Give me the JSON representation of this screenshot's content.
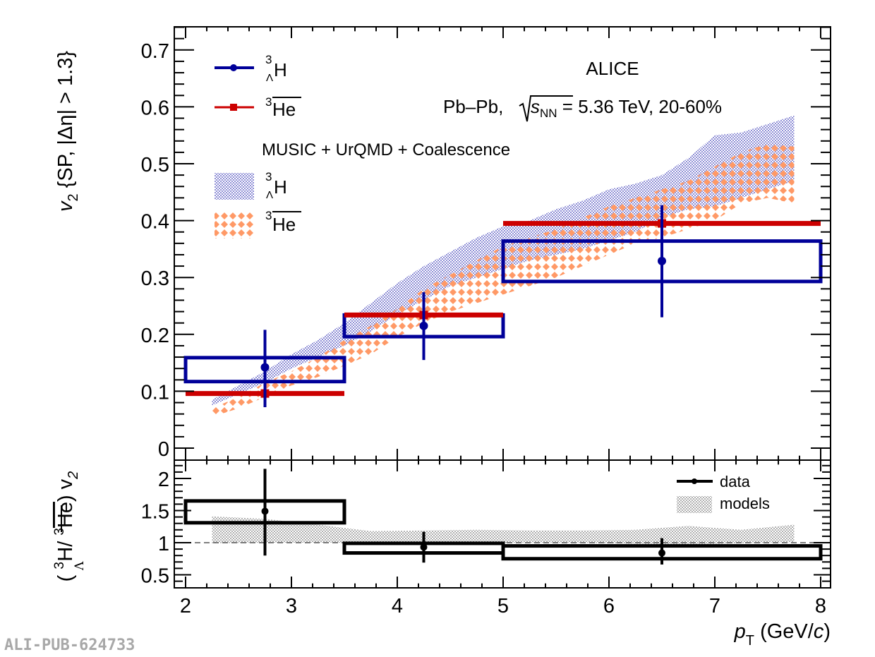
{
  "chart_data": [
    {
      "type": "scatter",
      "panel": "top",
      "ylabel": "v2 {SP, |Δη| > 1.3}",
      "ylabel_parts": {
        "main": "v",
        "sub": "2",
        "rest": " {SP, |Δη| > 1.3}"
      },
      "xlim": [
        1.9,
        8.1
      ],
      "ylim": [
        -0.03,
        0.74
      ],
      "yticks": [
        0,
        0.1,
        0.2,
        0.3,
        0.4,
        0.5,
        0.6,
        0.7
      ],
      "ytick_labels": [
        "0",
        "0.1",
        "0.2",
        "0.3",
        "0.4",
        "0.5",
        "0.6",
        "0.7"
      ],
      "annotations": {
        "experiment": "ALICE",
        "system": "Pb–Pb, ",
        "sqrt_s": "s",
        "sqrt_s_sub": "NN",
        "energy": " = 5.36 TeV, 20-60%",
        "model_title": "MUSIC + UrQMD + Coalescence"
      },
      "legend": {
        "placement": "top-left",
        "entries": [
          {
            "key": "hyp",
            "sup": "3",
            "sub": "Λ",
            "label": "H",
            "kind": "marker-line"
          },
          {
            "key": "he",
            "sup": "3",
            "label": "He",
            "overline": true,
            "kind": "marker-line"
          },
          {
            "key": "hyp_model",
            "sup": "3",
            "sub": "Λ",
            "label": "H",
            "kind": "band"
          },
          {
            "key": "he_model",
            "sup": "3",
            "label": "He",
            "overline": true,
            "kind": "band"
          }
        ]
      },
      "series": [
        {
          "name": "3ΛH",
          "color": "#000099",
          "bins": [
            [
              2,
              3.5
            ],
            [
              3.5,
              5
            ],
            [
              5,
              8
            ]
          ],
          "x": [
            2.75,
            4.25,
            6.5
          ],
          "y": [
            0.142,
            0.215,
            0.329
          ],
          "stat_err": [
            [
              0.072,
              0.208
            ],
            [
              0.155,
              0.274
            ],
            [
              0.23,
              0.427
            ]
          ],
          "syst": [
            [
              0.117,
              0.159
            ],
            [
              0.196,
              0.234
            ],
            [
              0.293,
              0.364
            ]
          ]
        },
        {
          "name": "3He-bar",
          "color": "#cc0000",
          "bins": [
            [
              2,
              3.5
            ],
            [
              3.5,
              5
            ],
            [
              5,
              8
            ]
          ],
          "x": [
            2.75,
            4.25,
            6.5
          ],
          "y": [
            0.096,
            0.234,
            0.395
          ]
        }
      ],
      "models": [
        {
          "name": "3ΛH model",
          "color": "#9a9ad8",
          "x": [
            2.25,
            2.5,
            2.75,
            3.0,
            3.25,
            3.5,
            3.75,
            4.0,
            4.25,
            4.5,
            4.75,
            5.0,
            5.25,
            5.5,
            5.75,
            6.0,
            6.25,
            6.5,
            6.75,
            7.0,
            7.25,
            7.5,
            7.75
          ],
          "low": [
            0.075,
            0.095,
            0.115,
            0.14,
            0.16,
            0.18,
            0.205,
            0.235,
            0.26,
            0.285,
            0.3,
            0.315,
            0.33,
            0.34,
            0.35,
            0.365,
            0.38,
            0.405,
            0.42,
            0.425,
            0.44,
            0.455,
            0.47
          ],
          "high": [
            0.085,
            0.11,
            0.135,
            0.165,
            0.19,
            0.22,
            0.255,
            0.29,
            0.32,
            0.345,
            0.37,
            0.39,
            0.4,
            0.42,
            0.435,
            0.455,
            0.465,
            0.48,
            0.51,
            0.55,
            0.555,
            0.57,
            0.585
          ]
        },
        {
          "name": "3He-bar model",
          "color": "#ff9966",
          "x": [
            2.25,
            2.5,
            2.75,
            3.0,
            3.25,
            3.5,
            3.75,
            4.0,
            4.25,
            4.5,
            4.75,
            5.0,
            5.25,
            5.5,
            5.75,
            6.0,
            6.25,
            6.5,
            6.75,
            7.0,
            7.25,
            7.5,
            7.75
          ],
          "low": [
            0.055,
            0.07,
            0.09,
            0.11,
            0.125,
            0.145,
            0.165,
            0.195,
            0.22,
            0.24,
            0.255,
            0.27,
            0.285,
            0.3,
            0.32,
            0.34,
            0.36,
            0.37,
            0.385,
            0.4,
            0.43,
            0.44,
            0.43
          ],
          "high": [
            0.07,
            0.09,
            0.115,
            0.135,
            0.16,
            0.19,
            0.215,
            0.245,
            0.28,
            0.305,
            0.33,
            0.355,
            0.37,
            0.385,
            0.405,
            0.425,
            0.44,
            0.455,
            0.47,
            0.495,
            0.52,
            0.535,
            0.53
          ]
        }
      ]
    },
    {
      "type": "scatter",
      "panel": "bottom",
      "ylabel": "(3ΛH/3He-bar) v2",
      "ylabel_parts": {
        "open": "( ",
        "sup1": "3",
        "sub1": "Λ",
        "h": "H/ ",
        "sup2": "3",
        "he": "He",
        "close": ") v",
        "sub": "2"
      },
      "xlabel": "pT (GeV/c)",
      "xlabel_parts": {
        "p": "p",
        "sub": "T",
        "rest": " (GeV/",
        "c": "c",
        "end": ")"
      },
      "xlim": [
        1.9,
        8.1
      ],
      "ylim": [
        0.3,
        2.29
      ],
      "xticks": [
        2,
        3,
        4,
        5,
        6,
        7,
        8
      ],
      "xtick_labels": [
        "2",
        "3",
        "4",
        "5",
        "6",
        "7",
        "8"
      ],
      "yticks": [
        0.5,
        1,
        1.5,
        2
      ],
      "ytick_labels": [
        "0.5",
        "1",
        "1.5",
        "2"
      ],
      "reference_line": 1,
      "legend": {
        "placement": "top-right",
        "entries": [
          {
            "key": "data",
            "label": "data",
            "kind": "marker-line"
          },
          {
            "key": "models",
            "label": "models",
            "kind": "band"
          }
        ]
      },
      "series": [
        {
          "name": "data",
          "color": "#000000",
          "bins": [
            [
              2,
              3.5
            ],
            [
              3.5,
              5
            ],
            [
              5,
              8
            ]
          ],
          "x": [
            2.75,
            4.25,
            6.5
          ],
          "y": [
            1.49,
            0.93,
            0.84
          ],
          "stat_err": [
            [
              0.8,
              2.15
            ],
            [
              0.69,
              1.17
            ],
            [
              0.66,
              1.07
            ]
          ],
          "syst": [
            [
              1.31,
              1.65
            ],
            [
              0.84,
              0.99
            ],
            [
              0.75,
              0.95
            ]
          ]
        }
      ],
      "models": [
        {
          "name": "models",
          "color": "#a0a0a0",
          "x": [
            2.25,
            2.75,
            3.25,
            3.75,
            4.25,
            4.75,
            5.25,
            5.75,
            6.25,
            6.75,
            7.25,
            7.75
          ],
          "low": [
            0.99,
            1.0,
            1.0,
            1.0,
            1.0,
            1.0,
            1.0,
            1.0,
            0.98,
            0.97,
            0.99,
            1.01
          ],
          "high": [
            1.41,
            1.37,
            1.28,
            1.18,
            1.19,
            1.2,
            1.19,
            1.19,
            1.2,
            1.26,
            1.2,
            1.28
          ]
        }
      ]
    }
  ],
  "watermark": "ALI-PUB-624733"
}
